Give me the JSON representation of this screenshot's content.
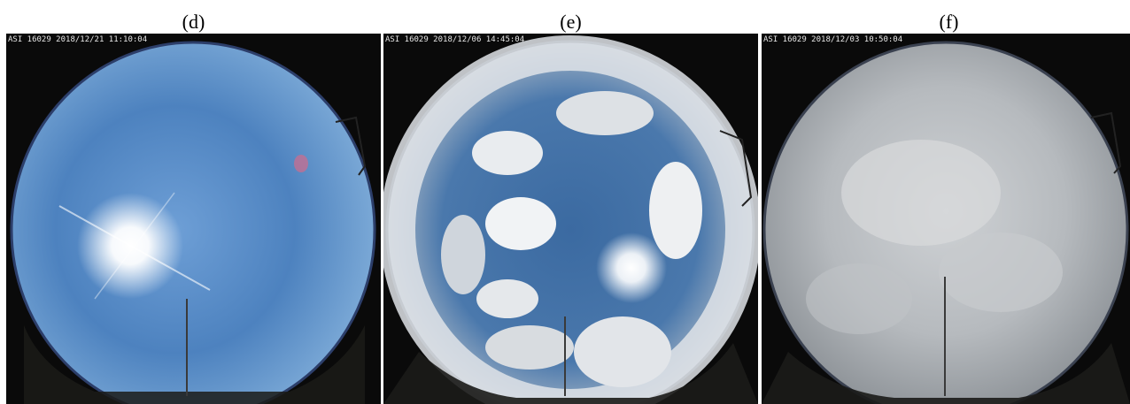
{
  "panels": [
    {
      "caption": "(d)",
      "timestamp": "ASI 16029 2018/12/21 11:10:04",
      "sky": "clear-sky-with-sun"
    },
    {
      "caption": "(e)",
      "timestamp": "ASI 16029 2018/12/06 14:45:04",
      "sky": "broken-cumulus-clouds"
    },
    {
      "caption": "(f)",
      "timestamp": "ASI 16029 2018/12/03 10:50:04",
      "sky": "overcast"
    }
  ],
  "colors": {
    "clear_sky": "#4f86c2",
    "cloudy_sky_blue": "#3f6d9e",
    "overcast_grey": "#b9bcbf",
    "ground": "#1b1b18"
  }
}
